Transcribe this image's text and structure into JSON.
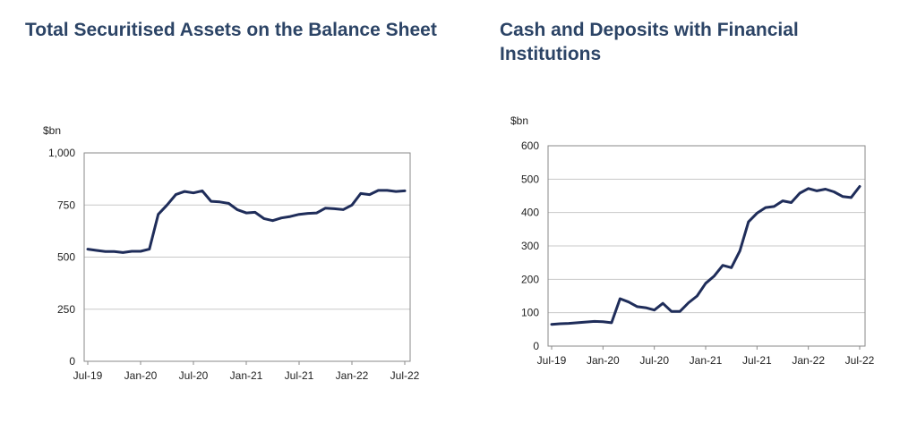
{
  "chart_data": [
    {
      "type": "line",
      "title": "Total Securitised Assets on the Balance Sheet",
      "ylabel": "$bn",
      "xlabel": "",
      "ylim": [
        0,
        1000
      ],
      "yticks": [
        "0",
        "250",
        "500",
        "750",
        "1,000"
      ],
      "ytick_values": [
        0,
        250,
        500,
        750,
        1000
      ],
      "xticks": [
        "Jul-19",
        "Jan-20",
        "Jul-20",
        "Jan-21",
        "Jul-21",
        "Jan-22",
        "Jul-22"
      ],
      "grid": true,
      "line_color": "#1f2d5a",
      "x": [
        "2019-07",
        "2019-08",
        "2019-09",
        "2019-10",
        "2019-11",
        "2019-12",
        "2020-01",
        "2020-02",
        "2020-03",
        "2020-04",
        "2020-05",
        "2020-06",
        "2020-07",
        "2020-08",
        "2020-09",
        "2020-10",
        "2020-11",
        "2020-12",
        "2021-01",
        "2021-02",
        "2021-03",
        "2021-04",
        "2021-05",
        "2021-06",
        "2021-07",
        "2021-08",
        "2021-09",
        "2021-10",
        "2021-11",
        "2021-12",
        "2022-01",
        "2022-02",
        "2022-03",
        "2022-04",
        "2022-05",
        "2022-06",
        "2022-07"
      ],
      "values": [
        538,
        532,
        527,
        527,
        522,
        528,
        528,
        538,
        705,
        750,
        800,
        815,
        808,
        818,
        768,
        765,
        758,
        727,
        712,
        715,
        685,
        675,
        688,
        695,
        705,
        710,
        712,
        735,
        732,
        728,
        750,
        805,
        800,
        820,
        820,
        815,
        818
      ]
    },
    {
      "type": "line",
      "title": "Cash and Deposits with Financial Institutions",
      "ylabel": "$bn",
      "xlabel": "",
      "ylim": [
        0,
        600
      ],
      "yticks": [
        "0",
        "100",
        "200",
        "300",
        "400",
        "500",
        "600"
      ],
      "ytick_values": [
        0,
        100,
        200,
        300,
        400,
        500,
        600
      ],
      "xticks": [
        "Jul-19",
        "Jan-20",
        "Jul-20",
        "Jan-21",
        "Jul-21",
        "Jan-22",
        "Jul-22"
      ],
      "grid": true,
      "line_color": "#1f2d5a",
      "x": [
        "2019-07",
        "2019-08",
        "2019-09",
        "2019-10",
        "2019-11",
        "2019-12",
        "2020-01",
        "2020-02",
        "2020-03",
        "2020-04",
        "2020-05",
        "2020-06",
        "2020-07",
        "2020-08",
        "2020-09",
        "2020-10",
        "2020-11",
        "2020-12",
        "2021-01",
        "2021-02",
        "2021-03",
        "2021-04",
        "2021-05",
        "2021-06",
        "2021-07",
        "2021-08",
        "2021-09",
        "2021-10",
        "2021-11",
        "2021-12",
        "2022-01",
        "2022-02",
        "2022-03",
        "2022-04",
        "2022-05",
        "2022-06",
        "2022-07"
      ],
      "values": [
        65,
        67,
        68,
        70,
        72,
        74,
        73,
        70,
        142,
        132,
        118,
        115,
        108,
        128,
        104,
        104,
        130,
        150,
        188,
        210,
        242,
        235,
        285,
        372,
        398,
        415,
        418,
        435,
        430,
        458,
        472,
        465,
        470,
        462,
        448,
        445,
        478
      ]
    }
  ]
}
